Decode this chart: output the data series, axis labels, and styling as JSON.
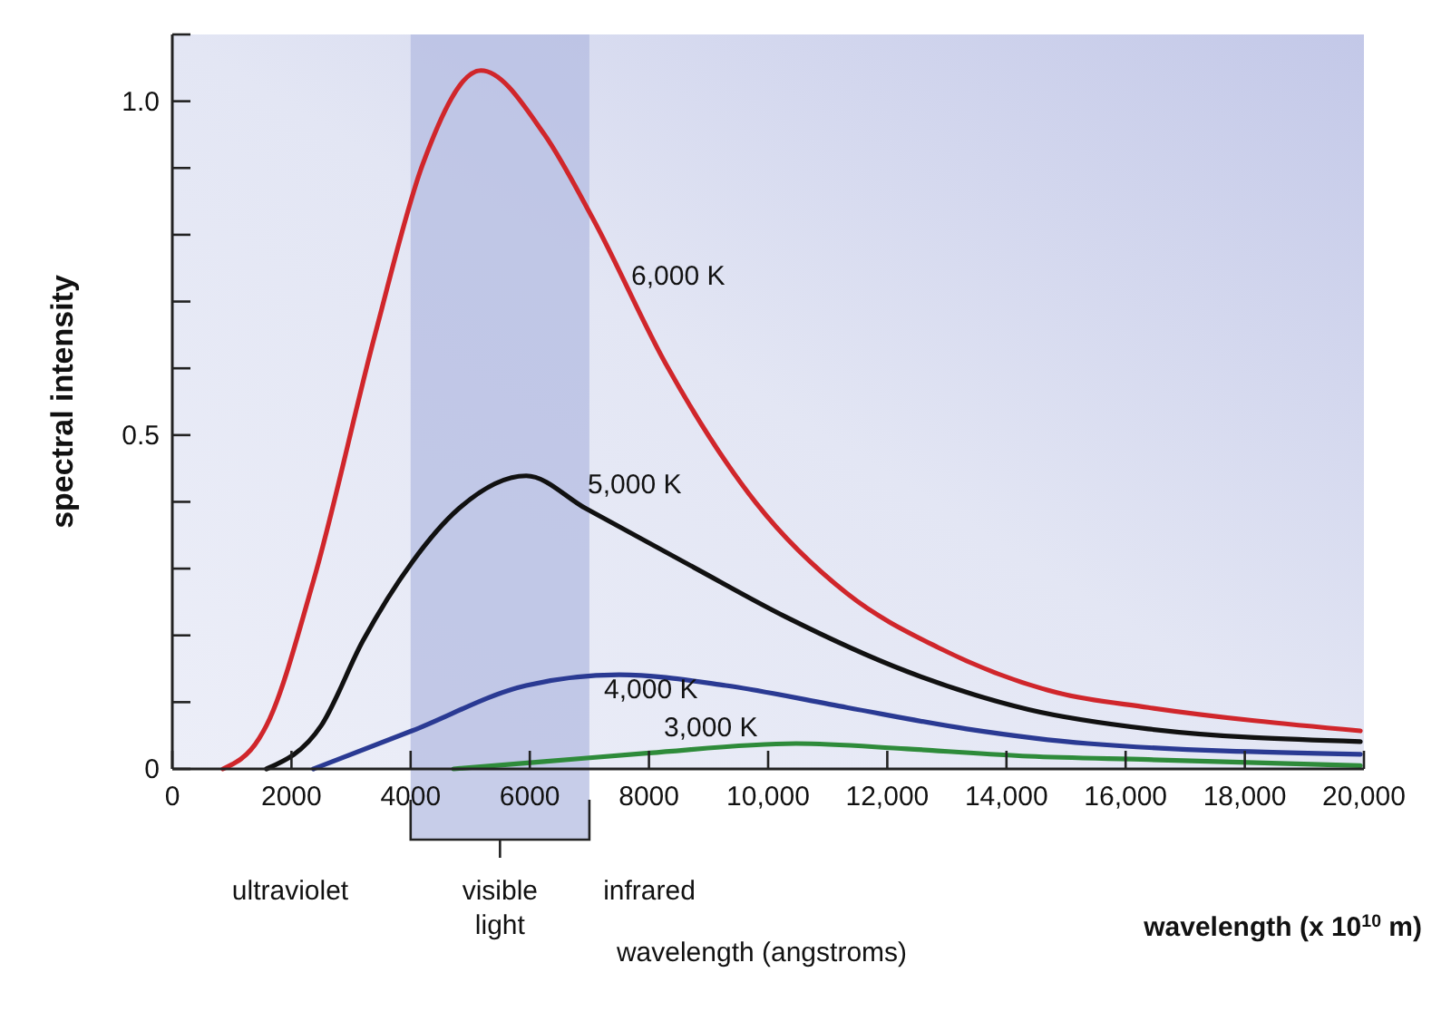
{
  "chart_data": {
    "type": "line",
    "xlabel": "wavelength (angstroms)",
    "ylabel": "spectral intensity",
    "annotations": [
      "ultraviolet",
      "infrared",
      "wavelength (x 10$^{10}$ m)"
    ],
    "xlim": [
      0,
      20000
    ],
    "ylim": [
      0,
      1.1
    ],
    "xticks": [
      0,
      2000,
      4000,
      6000,
      8000,
      {
        "value": 10000,
        "label": "10,000"
      },
      {
        "value": 12000,
        "label": "12,000"
      },
      {
        "value": 14000,
        "label": "14,000"
      },
      {
        "value": 16000,
        "label": "16,000"
      },
      {
        "value": 18000,
        "label": "18,000"
      },
      {
        "value": 20000,
        "label": "20,000"
      }
    ],
    "yticks": [
      0,
      {
        "value": 0.1,
        "label": null
      },
      {
        "value": 0.2,
        "label": null
      },
      {
        "value": 0.3,
        "label": null
      },
      {
        "value": 0.4,
        "label": null
      },
      0.5,
      {
        "value": 0.6,
        "label": null
      },
      {
        "value": 0.7,
        "label": null
      },
      {
        "value": 0.8,
        "label": null
      },
      {
        "value": 0.9,
        "label": null
      },
      {
        "value": 1,
        "label": "1.0"
      }
    ],
    "bands": [
      {
        "axis": "x",
        "from": 4000,
        "to": 7000,
        "label": "visible light",
        "color": "#b4bce2"
      }
    ],
    "grid": false,
    "legend": false,
    "marker": "none",
    "line_style": "solid",
    "series": [
      {
        "name": "6,000 K",
        "color": "#d0262b",
        "x": [
          850,
          1460,
          1580,
          2370,
          3410,
          4200,
          5180,
          6240,
          7060,
          8280,
          9800,
          11320,
          12850,
          14860,
          16380,
          19940
        ],
        "values": [
          0,
          0.046,
          0.065,
          0.282,
          0.653,
          0.905,
          1.046,
          0.951,
          0.824,
          0.607,
          0.398,
          0.263,
          0.182,
          0.114,
          0.092,
          0.057
        ]
      },
      {
        "name": "5,000 K",
        "color": "#111111",
        "x": [
          1580,
          2500,
          3200,
          4020,
          4810,
          5940,
          6940,
          8770,
          10290,
          12330,
          14370,
          16380,
          19940
        ],
        "values": [
          0,
          0.065,
          0.192,
          0.309,
          0.39,
          0.439,
          0.39,
          0.301,
          0.228,
          0.146,
          0.089,
          0.06,
          0.041
        ]
      },
      {
        "name": "4,000 K",
        "color": "#2a3a93",
        "x": [
          2370,
          4020,
          5940,
          7500,
          9290,
          11320,
          13330,
          15370,
          19940
        ],
        "values": [
          0,
          0.057,
          0.125,
          0.141,
          0.125,
          0.092,
          0.06,
          0.038,
          0.022
        ]
      },
      {
        "name": "3,000 K",
        "color": "#2e8b3a",
        "x": [
          4720,
          6240,
          8010,
          10470,
          12330,
          14370,
          16380,
          19940
        ],
        "values": [
          0,
          0.011,
          0.024,
          0.038,
          0.03,
          0.019,
          0.014,
          0.005
        ]
      }
    ]
  }
}
